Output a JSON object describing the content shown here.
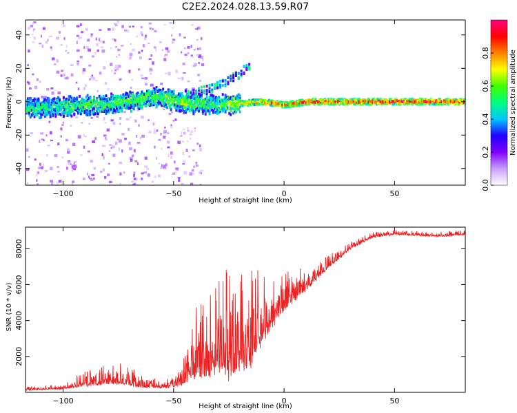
{
  "title": "C2E2.2024.028.13.59.R07",
  "chart_data": [
    {
      "type": "heatmap",
      "xlabel": "Height of straight line (km)",
      "ylabel": "Frequency (Hz)",
      "xlim": [
        -117,
        82
      ],
      "ylim": [
        -50,
        49
      ],
      "xticks": [
        -100,
        -50,
        0,
        50
      ],
      "yticks": [
        -40,
        -20,
        0,
        20,
        40
      ],
      "colorbar": {
        "label": "Normalized spectral amplitude",
        "range": [
          0,
          1
        ],
        "ticks": [
          "0.0",
          "0.2",
          "0.4",
          "0.6",
          "0.8"
        ],
        "colors": [
          "#ffffff",
          "#c8a0ff",
          "#8000ff",
          "#2000ff",
          "#00c8ff",
          "#00ff80",
          "#40ff00",
          "#ffff00",
          "#ff8000",
          "#ff0000",
          "#ff0080"
        ]
      },
      "ridge": [
        {
          "x": -117,
          "f": -4,
          "amp": 0.55
        },
        {
          "x": -100,
          "f": -3,
          "amp": 0.55
        },
        {
          "x": -85,
          "f": -2,
          "amp": 0.6
        },
        {
          "x": -70,
          "f": 0,
          "amp": 0.6
        },
        {
          "x": -57,
          "f": 3,
          "amp": 0.6
        },
        {
          "x": -50,
          "f": 0,
          "amp": 0.65
        },
        {
          "x": -40,
          "f": -1,
          "amp": 0.6
        },
        {
          "x": -30,
          "f": -2,
          "amp": 0.6
        },
        {
          "x": -20,
          "f": -1,
          "amp": 0.75
        },
        {
          "x": -10,
          "f": 0,
          "amp": 0.85
        },
        {
          "x": 0,
          "f": -2,
          "amp": 0.9
        },
        {
          "x": 10,
          "f": 0,
          "amp": 0.95
        },
        {
          "x": 40,
          "f": 0,
          "amp": 0.95
        },
        {
          "x": 80,
          "f": 0,
          "amp": 0.95
        }
      ],
      "secondary_branch": [
        {
          "x": -45,
          "f": 5
        },
        {
          "x": -35,
          "f": 8
        },
        {
          "x": -27,
          "f": 12
        },
        {
          "x": -20,
          "f": 18
        },
        {
          "x": -15,
          "f": 24
        }
      ]
    },
    {
      "type": "line",
      "xlabel": "Height of straight line (km)",
      "ylabel": "SNR (10 * v/v)",
      "xlim": [
        -117,
        82
      ],
      "ylim": [
        0,
        9200
      ],
      "xticks": [
        -100,
        -50,
        0,
        50
      ],
      "yticks": [
        2000,
        4000,
        6000,
        8000
      ],
      "series": [
        {
          "color": "#ee2222",
          "envelope": [
            {
              "x": -117,
              "base": 150,
              "amp": 200
            },
            {
              "x": -100,
              "base": 200,
              "amp": 250
            },
            {
              "x": -95,
              "base": 350,
              "amp": 700
            },
            {
              "x": -85,
              "base": 500,
              "amp": 1000
            },
            {
              "x": -75,
              "base": 600,
              "amp": 1400
            },
            {
              "x": -65,
              "base": 350,
              "amp": 700
            },
            {
              "x": -55,
              "base": 250,
              "amp": 450
            },
            {
              "x": -48,
              "base": 400,
              "amp": 800
            },
            {
              "x": -40,
              "base": 1200,
              "amp": 3600
            },
            {
              "x": -30,
              "base": 1600,
              "amp": 5200
            },
            {
              "x": -25,
              "base": 1400,
              "amp": 6000
            },
            {
              "x": -15,
              "base": 2000,
              "amp": 5000
            },
            {
              "x": -10,
              "base": 3200,
              "amp": 3800
            },
            {
              "x": 0,
              "base": 4800,
              "amp": 2200
            },
            {
              "x": 10,
              "base": 5800,
              "amp": 1200
            },
            {
              "x": 20,
              "base": 7000,
              "amp": 700
            },
            {
              "x": 30,
              "base": 8000,
              "amp": 400
            },
            {
              "x": 40,
              "base": 8650,
              "amp": 300
            },
            {
              "x": 50,
              "base": 8800,
              "amp": 250
            },
            {
              "x": 60,
              "base": 8750,
              "amp": 250
            },
            {
              "x": 70,
              "base": 8700,
              "amp": 250
            },
            {
              "x": 82,
              "base": 8800,
              "amp": 300
            }
          ]
        }
      ]
    }
  ]
}
